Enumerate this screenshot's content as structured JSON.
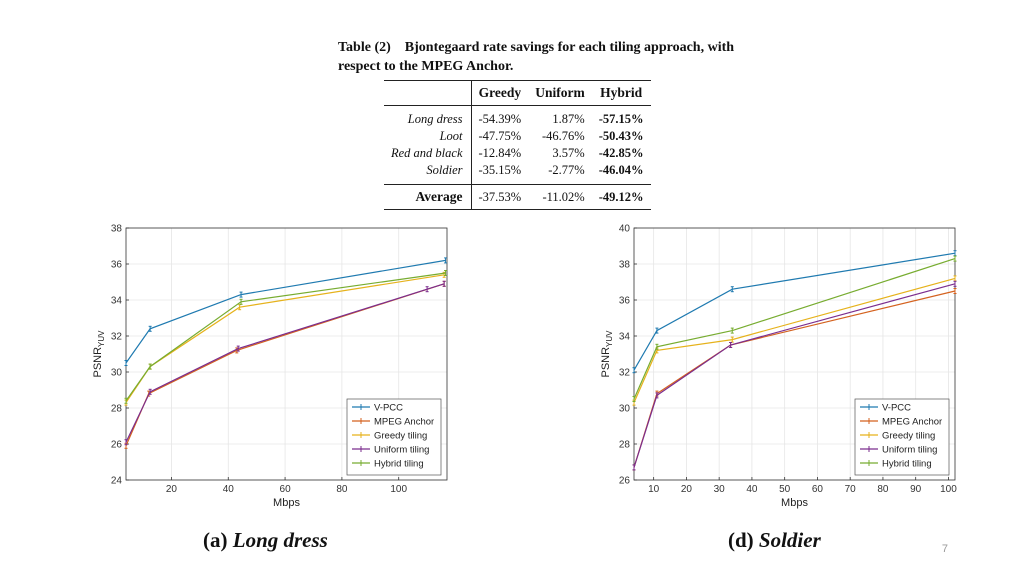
{
  "table": {
    "label": "Table (2)",
    "title": "Bjontegaard rate savings for each tiling approach, with respect to the MPEG Anchor.",
    "columns": [
      "Greedy",
      "Uniform",
      "Hybrid"
    ],
    "rows": [
      {
        "name": "Long dress",
        "values": [
          "-54.39%",
          "1.87%",
          "-57.15%"
        ]
      },
      {
        "name": "Loot",
        "values": [
          "-47.75%",
          "-46.76%",
          "-50.43%"
        ]
      },
      {
        "name": "Red and black",
        "values": [
          "-12.84%",
          "3.57%",
          "-42.85%"
        ]
      },
      {
        "name": "Soldier",
        "values": [
          "-35.15%",
          "-2.77%",
          "-46.04%"
        ]
      }
    ],
    "average": {
      "name": "Average",
      "values": [
        "-37.53%",
        "-11.02%",
        "-49.12%"
      ]
    }
  },
  "subcaptions": {
    "a": {
      "prefix": "(a) ",
      "title": "Long dress"
    },
    "d": {
      "prefix": "(d) ",
      "title": "Soldier"
    }
  },
  "page_number": "7",
  "colors": {
    "V-PCC": "#1f7ab0",
    "MPEG Anchor": "#d4621f",
    "Greedy tiling": "#e6b21b",
    "Uniform tiling": "#7b2d8e",
    "Hybrid tiling": "#77ac30"
  },
  "chart_data": [
    {
      "type": "line",
      "title": "",
      "xlabel": "Mbps",
      "ylabel": "PSNR",
      "ylabel_sub": "YUV",
      "xlim": [
        4,
        117
      ],
      "ylim": [
        24,
        38
      ],
      "xticks": [
        20,
        40,
        60,
        80,
        100
      ],
      "yticks": [
        24,
        26,
        28,
        30,
        32,
        34,
        36,
        38
      ],
      "grid": true,
      "legend_position": "bottom-right",
      "series": [
        {
          "name": "V-PCC",
          "x": [
            4,
            12.5,
            44.5,
            116.5
          ],
          "y": [
            30.5,
            32.4,
            34.3,
            36.2
          ]
        },
        {
          "name": "MPEG Anchor",
          "x": [
            4,
            12,
            43,
            116
          ],
          "y": [
            25.9,
            28.8,
            31.2,
            34.9
          ]
        },
        {
          "name": "Greedy tiling",
          "x": [
            4,
            12.5,
            44,
            116
          ],
          "y": [
            28.3,
            30.3,
            33.6,
            35.4
          ]
        },
        {
          "name": "Uniform tiling",
          "x": [
            4,
            12.5,
            43.5,
            110,
            116
          ],
          "y": [
            26.1,
            28.9,
            31.3,
            34.6,
            34.9
          ]
        },
        {
          "name": "Hybrid tiling",
          "x": [
            4,
            12.5,
            44.5,
            116.5
          ],
          "y": [
            28.4,
            30.3,
            33.9,
            35.5
          ]
        }
      ]
    },
    {
      "type": "line",
      "title": "",
      "xlabel": "Mbps",
      "ylabel": "PSNR",
      "ylabel_sub": "YUV",
      "xlim": [
        4,
        102
      ],
      "ylim": [
        26,
        40
      ],
      "xticks": [
        10,
        20,
        30,
        40,
        50,
        60,
        70,
        80,
        90,
        100
      ],
      "yticks": [
        26,
        28,
        30,
        32,
        34,
        36,
        38,
        40
      ],
      "grid": true,
      "legend_position": "bottom-right",
      "series": [
        {
          "name": "V-PCC",
          "x": [
            4,
            11,
            34,
            102
          ],
          "y": [
            32.1,
            34.3,
            36.6,
            38.6
          ]
        },
        {
          "name": "MPEG Anchor",
          "x": [
            4,
            11,
            33.5,
            102
          ],
          "y": [
            26.7,
            30.8,
            33.5,
            36.5
          ]
        },
        {
          "name": "Greedy tiling",
          "x": [
            4,
            11,
            34,
            102
          ],
          "y": [
            30.3,
            33.2,
            33.8,
            37.2
          ]
        },
        {
          "name": "Uniform tiling",
          "x": [
            4,
            11,
            33.5,
            102
          ],
          "y": [
            26.7,
            30.7,
            33.5,
            36.9
          ]
        },
        {
          "name": "Hybrid tiling",
          "x": [
            4,
            11,
            34,
            102
          ],
          "y": [
            30.5,
            33.4,
            34.3,
            38.3
          ]
        }
      ]
    }
  ]
}
